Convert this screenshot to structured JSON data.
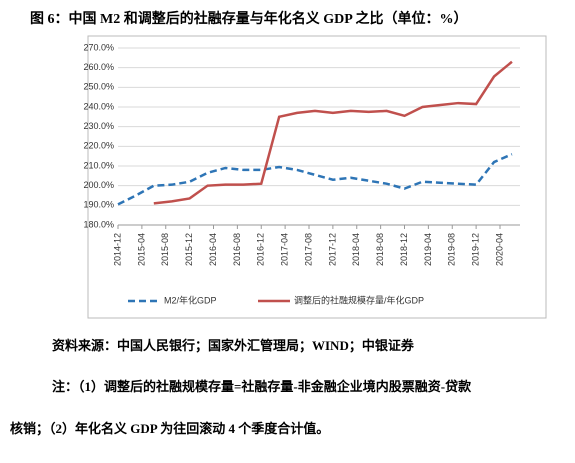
{
  "chart_data": {
    "type": "line",
    "title": "图 6：中国 M2 和调整后的社融存量与年化名义 GDP 之比（单位：%）",
    "x": [
      "2014-12",
      "2015-03",
      "2015-06",
      "2015-09",
      "2015-12",
      "2016-03",
      "2016-06",
      "2016-09",
      "2016-12",
      "2017-03",
      "2017-06",
      "2017-09",
      "2017-12",
      "2018-03",
      "2018-06",
      "2018-09",
      "2018-12",
      "2019-03",
      "2019-06",
      "2019-09",
      "2019-12",
      "2020-03",
      "2020-06"
    ],
    "series": [
      {
        "name": "M2/年化GDP",
        "color": "#2e75b6",
        "dashed": true,
        "values": [
          190.5,
          195,
          200,
          200.5,
          202,
          206.5,
          209,
          208,
          208,
          209.5,
          208,
          205.5,
          203,
          204,
          202.5,
          201,
          198.5,
          202,
          201.5,
          201,
          200.5,
          212,
          216
        ]
      },
      {
        "name": "调整后的社融规模存量/年化GDP",
        "color": "#c0504d",
        "dashed": false,
        "values": [
          null,
          null,
          191,
          192,
          193.5,
          200,
          200.5,
          200.5,
          201,
          235,
          237,
          238,
          237,
          238,
          237.5,
          238,
          235.5,
          240,
          241,
          242,
          241.5,
          255.5,
          263
        ]
      }
    ],
    "xticks": [
      "2014-12",
      "2015-04",
      "2015-08",
      "2015-12",
      "2016-04",
      "2016-08",
      "2016-12",
      "2017-04",
      "2017-08",
      "2017-12",
      "2018-04",
      "2018-08",
      "2018-12",
      "2019-04",
      "2019-08",
      "2019-12",
      "2020-04"
    ],
    "ylim": [
      180,
      270
    ],
    "yticks": [
      {
        "value": 180,
        "label": "180.0%"
      },
      {
        "value": 190,
        "label": "190.0%"
      },
      {
        "value": 200,
        "label": "200.0%"
      },
      {
        "value": 210,
        "label": "210.0%"
      },
      {
        "value": 220,
        "label": "220.0%"
      },
      {
        "value": 230,
        "label": "230.0%"
      },
      {
        "value": 240,
        "label": "240.0%"
      },
      {
        "value": 250,
        "label": "250.0%"
      },
      {
        "value": 260,
        "label": "260.0%"
      },
      {
        "value": 270,
        "label": "270.0%"
      }
    ],
    "grid": true,
    "legend": "bottom"
  },
  "source": "资料来源：中国人民银行；国家外汇管理局；WIND；中银证券",
  "note": [
    "注：（1）调整后的社融规模存量=社融存量-非金融企业境内股票融资-贷款",
    "核销；（2）年化名义 GDP 为往回滚动 4 个季度合计值。"
  ]
}
